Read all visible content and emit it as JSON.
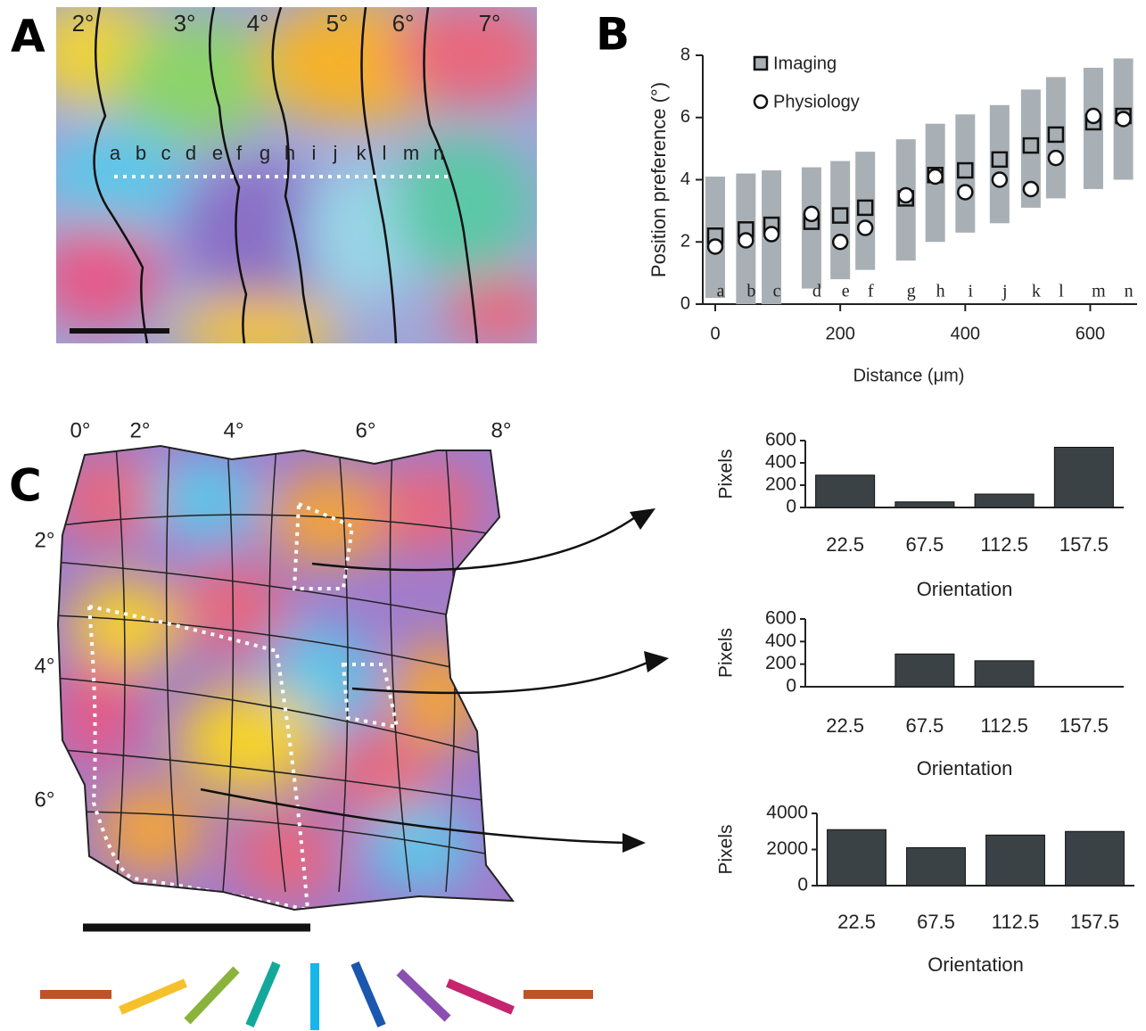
{
  "panel_labels": [
    "A",
    "B",
    "C"
  ],
  "map_a": {
    "degree_labels": [
      "2°",
      "3°",
      "4°",
      "5°",
      "6°",
      "7°"
    ],
    "site_labels": [
      "a",
      "b",
      "c",
      "d",
      "e",
      "f",
      "g",
      "h",
      "i",
      "j",
      "k",
      "l",
      "m",
      "n"
    ]
  },
  "map_c": {
    "top_labels": [
      "0°",
      "2°",
      "4°",
      "6°",
      "8°"
    ],
    "side_labels": [
      "2°",
      "4°",
      "6°"
    ]
  },
  "chart_data": [
    {
      "type": "scatter",
      "x_label": "Distance (μm)",
      "y_label": "Position preference (°)",
      "x": [
        0,
        49,
        90,
        154,
        200,
        240,
        305,
        352,
        400,
        455,
        505,
        545,
        605,
        653
      ],
      "point_labels": [
        "a",
        "b",
        "c",
        "d",
        "e",
        "f",
        "g",
        "h",
        "i",
        "j",
        "k",
        "l",
        "m",
        "n"
      ],
      "series": [
        {
          "name": "Imaging",
          "color": "#a9b0b5",
          "values": [
            2.2,
            2.4,
            2.55,
            2.65,
            2.85,
            3.1,
            3.4,
            4.15,
            4.3,
            4.65,
            5.1,
            5.45,
            5.85,
            6.05
          ],
          "low": [
            0.2,
            0,
            0,
            0.5,
            0.8,
            1.1,
            1.4,
            2.0,
            2.3,
            2.6,
            3.1,
            3.4,
            3.7,
            4.0
          ],
          "high": [
            4.1,
            4.2,
            4.3,
            4.4,
            4.6,
            4.9,
            5.3,
            5.8,
            6.1,
            6.4,
            6.9,
            7.3,
            7.6,
            7.9
          ]
        },
        {
          "name": "Physiology",
          "color": "#ffffff",
          "values": [
            1.85,
            2.05,
            2.25,
            2.9,
            2.0,
            2.45,
            3.5,
            4.1,
            3.6,
            4.0,
            3.7,
            4.7,
            6.05,
            5.95
          ]
        }
      ],
      "xlim": [
        -20,
        675
      ],
      "xticks": [
        0,
        200,
        400,
        600
      ],
      "ylim": [
        0,
        8
      ],
      "yticks": [
        0,
        2,
        4,
        6,
        8
      ]
    },
    {
      "type": "bar",
      "x_label": "Orientation",
      "y_label": "Pixels",
      "color": "#3b4245",
      "categories": [
        "22.5",
        "67.5",
        "112.5",
        "157.5"
      ],
      "values": [
        290,
        50,
        120,
        540
      ],
      "ylim": [
        0,
        600
      ],
      "yticks": [
        0,
        200,
        400,
        600
      ]
    },
    {
      "type": "bar",
      "x_label": "Orientation",
      "y_label": "Pixels",
      "color": "#3b4245",
      "categories": [
        "22.5",
        "67.5",
        "112.5",
        "157.5"
      ],
      "values": [
        0,
        290,
        230,
        0
      ],
      "ylim": [
        0,
        600
      ],
      "yticks": [
        0,
        200,
        400,
        600
      ]
    },
    {
      "type": "bar",
      "x_label": "Orientation",
      "y_label": "Pixels",
      "color": "#3b4245",
      "categories": [
        "22.5",
        "67.5",
        "112.5",
        "157.5"
      ],
      "values": [
        3100,
        2100,
        2800,
        3000
      ],
      "ylim": [
        0,
        4000
      ],
      "yticks": [
        0,
        2000,
        4000
      ]
    }
  ]
}
